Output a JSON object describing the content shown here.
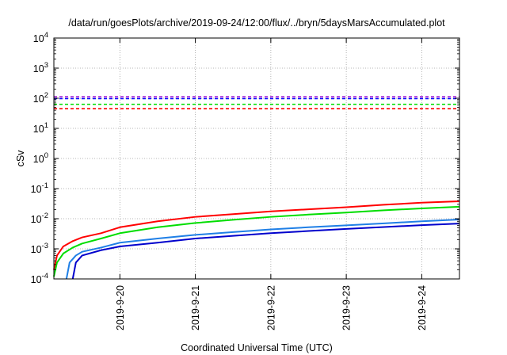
{
  "chart_data": {
    "type": "line",
    "title": "/data/run/goesPlots/archive/2019-09-24/12:00/flux/../bryn/5daysMarsAccumulated.plot",
    "xlabel": "Coordinated Universal Time (UTC)",
    "ylabel": "cSv",
    "y_scale": "log",
    "ylim": [
      0.0001,
      10000
    ],
    "xlim": [
      "2019-09-19T03:00",
      "2019-09-24T12:00"
    ],
    "y_ticks": [
      {
        "base": "10",
        "exp": "-4",
        "value": 0.0001
      },
      {
        "base": "10",
        "exp": "-3",
        "value": 0.001
      },
      {
        "base": "10",
        "exp": "-2",
        "value": 0.01
      },
      {
        "base": "10",
        "exp": "-1",
        "value": 0.1
      },
      {
        "base": "10",
        "exp": "0",
        "value": 1
      },
      {
        "base": "10",
        "exp": "1",
        "value": 10
      },
      {
        "base": "10",
        "exp": "2",
        "value": 100
      },
      {
        "base": "10",
        "exp": "3",
        "value": 1000
      },
      {
        "base": "10",
        "exp": "4",
        "value": 10000
      }
    ],
    "x_ticks": [
      {
        "label": "2019-9-20",
        "value": "2019-09-20T00:00"
      },
      {
        "label": "2019-9-21",
        "value": "2019-09-21T00:00"
      },
      {
        "label": "2019-9-22",
        "value": "2019-09-22T00:00"
      },
      {
        "label": "2019-9-23",
        "value": "2019-09-23T00:00"
      },
      {
        "label": "2019-9-24",
        "value": "2019-09-24T00:00"
      }
    ],
    "grid": true,
    "series": [
      {
        "color": "#ff0000",
        "style": "solid",
        "x": [
          "2019-09-19T03:00",
          "2019-09-19T04:00",
          "2019-09-19T06:00",
          "2019-09-19T09:00",
          "2019-09-19T12:00",
          "2019-09-19T18:00",
          "2019-09-20T00:00",
          "2019-09-20T12:00",
          "2019-09-21T00:00",
          "2019-09-21T12:00",
          "2019-09-22T00:00",
          "2019-09-22T12:00",
          "2019-09-23T00:00",
          "2019-09-23T12:00",
          "2019-09-24T00:00",
          "2019-09-24T12:00"
        ],
        "y": [
          0.0002,
          0.0006,
          0.0012,
          0.0018,
          0.0024,
          0.0033,
          0.0052,
          0.0082,
          0.0115,
          0.0142,
          0.0175,
          0.0205,
          0.024,
          0.029,
          0.034,
          0.038
        ]
      },
      {
        "color": "#00dd00",
        "style": "solid",
        "x": [
          "2019-09-19T03:00",
          "2019-09-19T04:00",
          "2019-09-19T06:00",
          "2019-09-19T09:00",
          "2019-09-19T12:00",
          "2019-09-19T18:00",
          "2019-09-20T00:00",
          "2019-09-20T12:00",
          "2019-09-21T00:00",
          "2019-09-21T12:00",
          "2019-09-22T00:00",
          "2019-09-22T12:00",
          "2019-09-23T00:00",
          "2019-09-23T12:00",
          "2019-09-24T00:00",
          "2019-09-24T12:00"
        ],
        "y": [
          0.00012,
          0.00035,
          0.0007,
          0.0011,
          0.0015,
          0.0022,
          0.0033,
          0.0052,
          0.0072,
          0.0092,
          0.0115,
          0.0137,
          0.016,
          0.019,
          0.022,
          0.025
        ]
      },
      {
        "color": "#1f7fe6",
        "style": "solid",
        "x": [
          "2019-09-19T07:00",
          "2019-09-19T08:00",
          "2019-09-19T10:00",
          "2019-09-19T12:00",
          "2019-09-19T18:00",
          "2019-09-20T00:00",
          "2019-09-20T12:00",
          "2019-09-21T00:00",
          "2019-09-21T12:00",
          "2019-09-22T00:00",
          "2019-09-22T12:00",
          "2019-09-23T00:00",
          "2019-09-23T12:00",
          "2019-09-24T00:00",
          "2019-09-24T12:00"
        ],
        "y": [
          0.0001,
          0.00035,
          0.0006,
          0.0008,
          0.0011,
          0.0016,
          0.0022,
          0.0029,
          0.0036,
          0.0044,
          0.0052,
          0.006,
          0.007,
          0.0082,
          0.0094
        ]
      },
      {
        "color": "#0000cc",
        "style": "solid",
        "x": [
          "2019-09-19T09:00",
          "2019-09-19T10:00",
          "2019-09-19T12:00",
          "2019-09-19T18:00",
          "2019-09-20T00:00",
          "2019-09-20T12:00",
          "2019-09-21T00:00",
          "2019-09-21T12:00",
          "2019-09-22T00:00",
          "2019-09-22T12:00",
          "2019-09-23T00:00",
          "2019-09-23T12:00",
          "2019-09-24T00:00",
          "2019-09-24T12:00"
        ],
        "y": [
          0.0001,
          0.00035,
          0.0006,
          0.0009,
          0.0012,
          0.0016,
          0.0022,
          0.0027,
          0.0033,
          0.0039,
          0.0046,
          0.0053,
          0.0061,
          0.0069
        ]
      },
      {
        "color": "#ff0000",
        "style": "dashed",
        "x": [
          "2019-09-19T03:00",
          "2019-09-24T12:00"
        ],
        "y": [
          45,
          45
        ]
      },
      {
        "color": "#00dd00",
        "style": "dashed",
        "x": [
          "2019-09-19T03:00",
          "2019-09-24T12:00"
        ],
        "y": [
          63,
          63
        ]
      },
      {
        "color": "#0000ff",
        "style": "dashed",
        "x": [
          "2019-09-19T03:00",
          "2019-09-24T12:00"
        ],
        "y": [
          97,
          97
        ]
      },
      {
        "color": "#9400d3",
        "style": "dashed",
        "x": [
          "2019-09-19T03:00",
          "2019-09-24T12:00"
        ],
        "y": [
          112,
          112
        ]
      }
    ]
  }
}
